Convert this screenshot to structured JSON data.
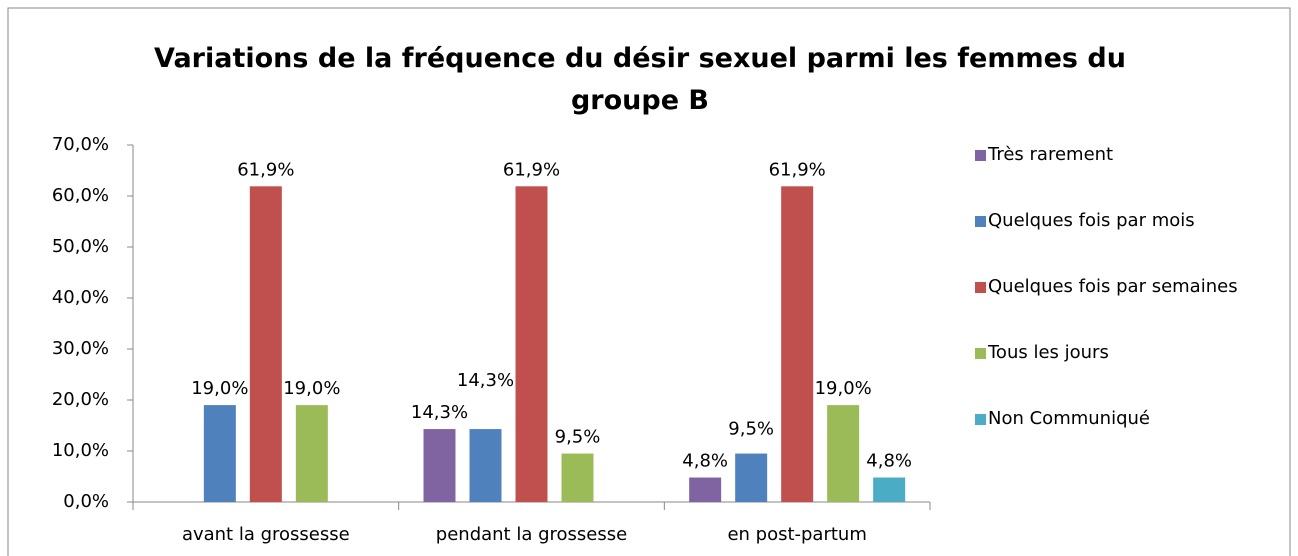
{
  "chart_data": {
    "type": "bar",
    "title": "Variations de la fréquence du désir sexuel parmi les femmes du groupe B",
    "categories": [
      "avant la grossesse",
      "pendant la grossesse",
      "en post-partum"
    ],
    "series": [
      {
        "name": "Très rarement",
        "color": "#8064a2",
        "values": [
          null,
          14.3,
          4.8
        ],
        "value_labels": [
          null,
          "14,3%",
          "4,8%"
        ]
      },
      {
        "name": "Quelques fois par mois",
        "color": "#4f81bd",
        "values": [
          19.0,
          14.3,
          9.5
        ],
        "value_labels": [
          "19,0%",
          "14,3%",
          "9,5%"
        ]
      },
      {
        "name": "Quelques fois par semaines",
        "color": "#c0504d",
        "values": [
          61.9,
          61.9,
          61.9
        ],
        "value_labels": [
          "61,9%",
          "61,9%",
          "61,9%"
        ]
      },
      {
        "name": "Tous les jours",
        "color": "#9bbb59",
        "values": [
          19.0,
          9.5,
          19.0
        ],
        "value_labels": [
          "19,0%",
          "9,5%",
          "19,0%"
        ]
      },
      {
        "name": "Non Communiqué",
        "color": "#4bacc6",
        "values": [
          null,
          null,
          4.8
        ],
        "value_labels": [
          null,
          null,
          "4,8%"
        ]
      }
    ],
    "ylim": [
      0,
      70
    ],
    "yticks": [
      {
        "value": 0,
        "label": "0,0%"
      },
      {
        "value": 10,
        "label": "10,0%"
      },
      {
        "value": 20,
        "label": "20,0%"
      },
      {
        "value": 30,
        "label": "30,0%"
      },
      {
        "value": 40,
        "label": "40,0%"
      },
      {
        "value": 50,
        "label": "50,0%"
      },
      {
        "value": 60,
        "label": "60,0%"
      },
      {
        "value": 70,
        "label": "70,0%"
      }
    ],
    "grid": false,
    "legend": "right"
  }
}
